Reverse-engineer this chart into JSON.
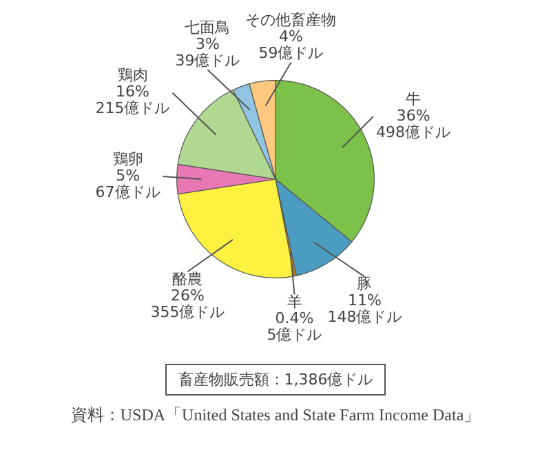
{
  "chart_data": {
    "type": "pie",
    "legend": false,
    "categories": [
      "牛",
      "豚",
      "羊",
      "酪農",
      "鶏卵",
      "鶏肉",
      "七面鳥",
      "その他畜産物"
    ],
    "values": [
      498,
      148,
      5,
      355,
      67,
      215,
      39,
      59
    ],
    "value_labels": [
      "36%\n498億ドル",
      "11%\n148億ドル",
      "0.4%\n5億ドル",
      "26%\n355億ドル",
      "5%\n67億ドル",
      "16%\n215億ドル",
      "3%\n39億ドル",
      "4%\n59億ドル"
    ],
    "colors": [
      "#7cc14a",
      "#4a9cc0",
      "#e08a10",
      "#fff140",
      "#e878b4",
      "#b0d890",
      "#90c4e0",
      "#ffc880"
    ],
    "annotations": [
      "畜産物販売額：1,386億ドル",
      "資料：USDA「United States and State Farm Income Data」"
    ]
  }
}
